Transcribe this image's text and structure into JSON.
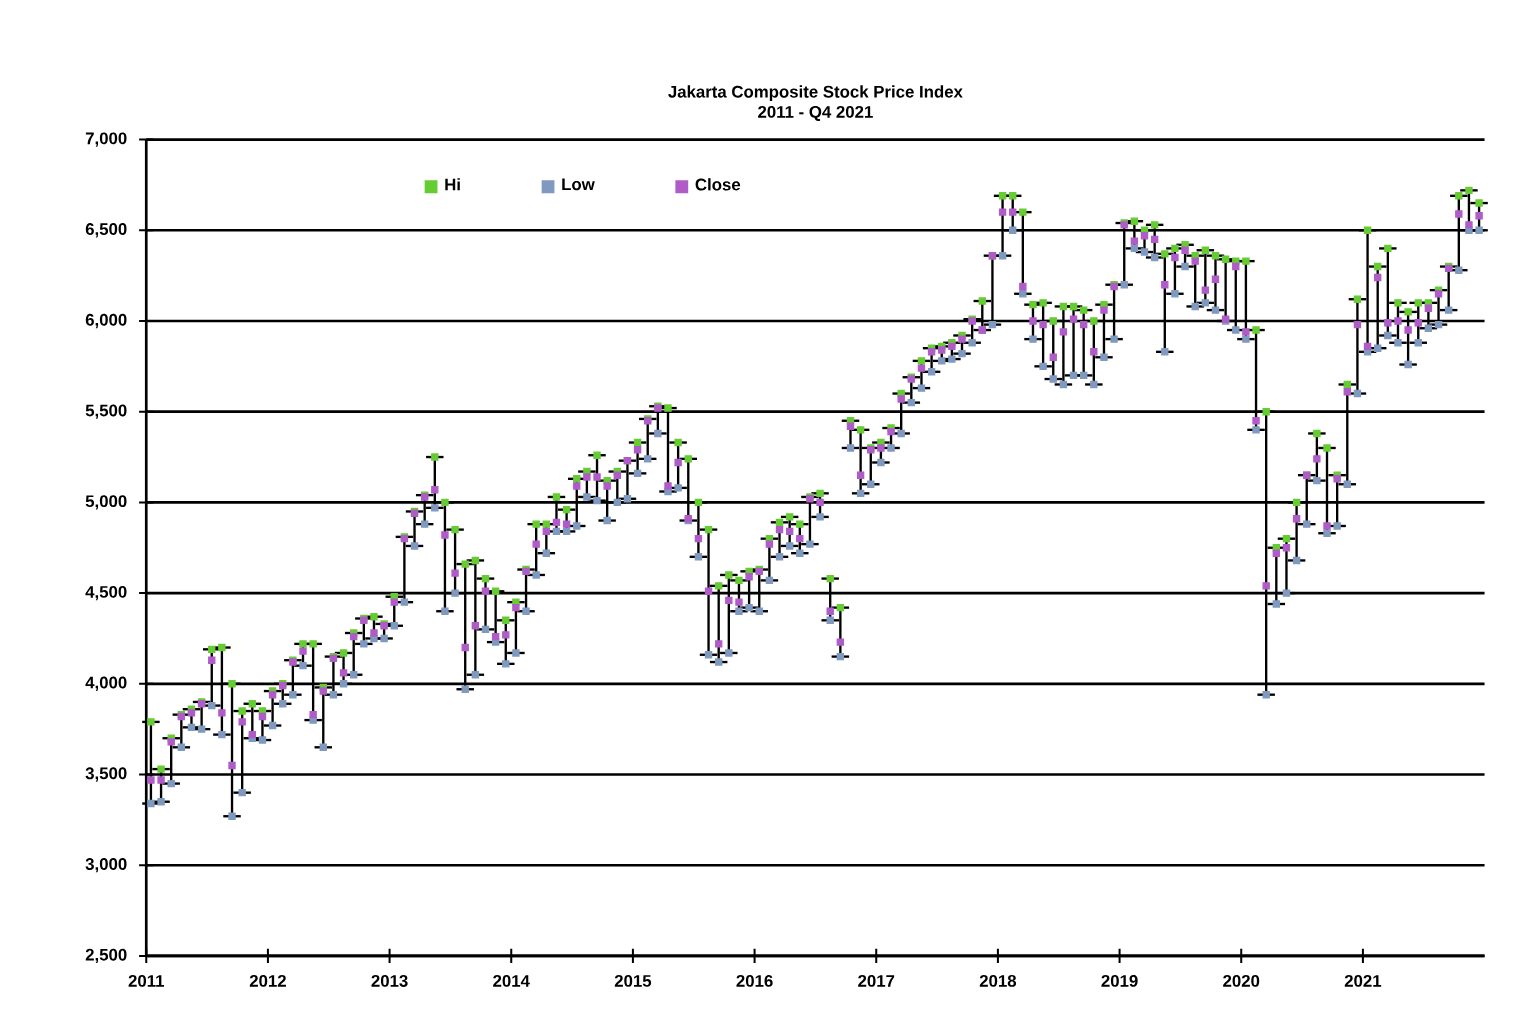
{
  "chart_data": {
    "type": "scatter",
    "title": "Jakarta Composite Stock Price Index",
    "subtitle": "2011 - Q4 2021",
    "x": [
      "2011-01-15",
      "2011-02-15",
      "2011-03-15",
      "2011-04-15",
      "2011-05-15",
      "2011-06-15",
      "2011-07-15",
      "2011-08-15",
      "2011-09-15",
      "2011-10-15",
      "2011-11-15",
      "2011-12-15",
      "2012-01-15",
      "2012-02-15",
      "2012-03-15",
      "2012-04-15",
      "2012-05-15",
      "2012-06-15",
      "2012-07-15",
      "2012-08-15",
      "2012-09-15",
      "2012-10-15",
      "2012-11-15",
      "2012-12-15",
      "2013-01-15",
      "2013-02-15",
      "2013-03-15",
      "2013-04-15",
      "2013-05-15",
      "2013-06-15",
      "2013-07-15",
      "2013-08-15",
      "2013-09-15",
      "2013-10-15",
      "2013-11-15",
      "2013-12-15",
      "2014-01-15",
      "2014-02-15",
      "2014-03-15",
      "2014-04-15",
      "2014-05-15",
      "2014-06-15",
      "2014-07-15",
      "2014-08-15",
      "2014-09-15",
      "2014-10-15",
      "2014-11-15",
      "2014-12-15",
      "2015-01-15",
      "2015-02-15",
      "2015-03-15",
      "2015-04-15",
      "2015-05-15",
      "2015-06-15",
      "2015-07-15",
      "2015-08-15",
      "2015-09-15",
      "2015-10-15",
      "2015-11-15",
      "2015-12-15",
      "2016-01-15",
      "2016-02-15",
      "2016-03-15",
      "2016-04-15",
      "2016-05-15",
      "2016-06-15",
      "2016-07-15",
      "2016-08-15",
      "2016-09-15",
      "2016-10-15",
      "2016-11-15",
      "2016-12-15",
      "2017-01-15",
      "2017-02-15",
      "2017-03-15",
      "2017-04-15",
      "2017-05-15",
      "2017-06-15",
      "2017-07-15",
      "2017-08-15",
      "2017-09-15",
      "2017-10-15",
      "2017-11-15",
      "2017-12-15",
      "2018-01-15",
      "2018-02-15",
      "2018-03-15",
      "2018-04-15",
      "2018-05-15",
      "2018-06-15",
      "2018-07-15",
      "2018-08-15",
      "2018-09-15",
      "2018-10-15",
      "2018-11-15",
      "2018-12-15",
      "2019-01-15",
      "2019-02-15",
      "2019-03-15",
      "2019-04-15",
      "2019-05-15",
      "2019-06-15",
      "2019-07-15",
      "2019-08-15",
      "2019-09-15",
      "2019-10-15",
      "2019-11-15",
      "2019-12-15",
      "2020-01-15",
      "2020-02-15",
      "2020-03-15",
      "2020-04-15",
      "2020-05-15",
      "2020-06-15",
      "2020-07-15",
      "2020-08-15",
      "2020-09-15",
      "2020-10-15",
      "2020-11-15",
      "2020-12-15",
      "2021-01-15",
      "2021-02-15",
      "2021-03-15",
      "2021-04-15",
      "2021-05-15",
      "2021-06-15",
      "2021-07-15",
      "2021-08-15",
      "2021-09-15",
      "2021-10-15",
      "2021-11-15",
      "2021-12-15"
    ],
    "series": [
      {
        "name": "Hi",
        "color": "#66cc33",
        "values": [
          3790,
          3530,
          3700,
          3830,
          3860,
          3900,
          4190,
          4200,
          4000,
          3850,
          3890,
          3850,
          3960,
          4000,
          4130,
          4220,
          4220,
          3980,
          4150,
          4170,
          4280,
          4360,
          4370,
          4330,
          4480,
          4810,
          4950,
          5040,
          5250,
          5000,
          4850,
          4660,
          4680,
          4580,
          4510,
          4350,
          4450,
          4630,
          4880,
          4880,
          5030,
          4960,
          5130,
          5170,
          5260,
          5120,
          5170,
          5230,
          5330,
          5460,
          5530,
          5520,
          5330,
          5240,
          5000,
          4850,
          4540,
          4600,
          4570,
          4620,
          4630,
          4800,
          4890,
          4920,
          4880,
          5030,
          5050,
          4580,
          4420,
          5450,
          5400,
          5300,
          5330,
          5410,
          5600,
          5690,
          5780,
          5850,
          5860,
          5880,
          5920,
          6010,
          6110,
          6360,
          6690,
          6690,
          6600,
          6090,
          6100,
          6000,
          6080,
          6080,
          6060,
          6000,
          6090,
          6200,
          6540,
          6550,
          6500,
          6530,
          6370,
          6400,
          6420,
          6360,
          6390,
          6360,
          6340,
          6330,
          6330,
          5950,
          5500,
          4750,
          4800,
          5000,
          5150,
          5380,
          5300,
          5150,
          5650,
          6120,
          6500,
          6300,
          6400,
          6100,
          6050,
          6100,
          6100,
          6170,
          6300,
          6690,
          6720,
          6650
        ]
      },
      {
        "name": "Low",
        "color": "#7f99bf",
        "values": [
          3340,
          3350,
          3450,
          3650,
          3760,
          3750,
          3880,
          3720,
          3270,
          3400,
          3700,
          3690,
          3770,
          3890,
          3940,
          4100,
          3800,
          3650,
          3940,
          4000,
          4050,
          4220,
          4250,
          4250,
          4320,
          4450,
          4760,
          4880,
          4970,
          4400,
          4500,
          3970,
          4050,
          4300,
          4230,
          4110,
          4170,
          4400,
          4600,
          4720,
          4840,
          4840,
          4870,
          5030,
          5010,
          4900,
          5000,
          5020,
          5160,
          5240,
          5380,
          5060,
          5080,
          4900,
          4700,
          4160,
          4120,
          4170,
          4400,
          4420,
          4400,
          4570,
          4700,
          4760,
          4720,
          4770,
          4920,
          4350,
          4150,
          5300,
          5050,
          5100,
          5220,
          5300,
          5380,
          5550,
          5630,
          5720,
          5780,
          5790,
          5820,
          5880,
          5950,
          5980,
          6360,
          6500,
          6150,
          5900,
          5750,
          5680,
          5650,
          5700,
          5700,
          5650,
          5800,
          5900,
          6200,
          6400,
          6380,
          6350,
          5830,
          6150,
          6300,
          6080,
          6100,
          6060,
          6000,
          5950,
          5900,
          5400,
          3940,
          4440,
          4500,
          4680,
          4880,
          5120,
          4830,
          4870,
          5100,
          5600,
          5830,
          5850,
          5920,
          5880,
          5760,
          5880,
          5960,
          5980,
          6060,
          6280,
          6500,
          6500
        ]
      },
      {
        "name": "Close",
        "color": "#b05cc8",
        "errors": [
          [
            3340,
            3790
          ],
          [
            3350,
            3530
          ],
          [
            3450,
            3700
          ],
          [
            3650,
            3830
          ],
          [
            3760,
            3860
          ],
          [
            3750,
            3900
          ],
          [
            3880,
            4190
          ],
          [
            3720,
            4200
          ],
          [
            3270,
            4000
          ],
          [
            3400,
            3850
          ],
          [
            3700,
            3890
          ],
          [
            3690,
            3850
          ],
          [
            3770,
            3960
          ],
          [
            3890,
            4000
          ],
          [
            3940,
            4130
          ],
          [
            4100,
            4220
          ],
          [
            3800,
            4220
          ],
          [
            3650,
            3980
          ],
          [
            3940,
            4150
          ],
          [
            4000,
            4170
          ],
          [
            4050,
            4280
          ],
          [
            4220,
            4360
          ],
          [
            4250,
            4370
          ],
          [
            4250,
            4330
          ],
          [
            4320,
            4480
          ],
          [
            4450,
            4810
          ],
          [
            4760,
            4950
          ],
          [
            4880,
            5040
          ],
          [
            4970,
            5250
          ],
          [
            4400,
            5000
          ],
          [
            4500,
            4850
          ],
          [
            3970,
            4660
          ],
          [
            4050,
            4680
          ],
          [
            4300,
            4580
          ],
          [
            4230,
            4510
          ],
          [
            4110,
            4350
          ],
          [
            4170,
            4450
          ],
          [
            4400,
            4630
          ],
          [
            4600,
            4880
          ],
          [
            4720,
            4880
          ],
          [
            4840,
            5030
          ],
          [
            4840,
            4960
          ],
          [
            4870,
            5130
          ],
          [
            5030,
            5170
          ],
          [
            5010,
            5260
          ],
          [
            4900,
            5120
          ],
          [
            5000,
            5170
          ],
          [
            5020,
            5230
          ],
          [
            5160,
            5330
          ],
          [
            5240,
            5460
          ],
          [
            5380,
            5530
          ],
          [
            5060,
            5520
          ],
          [
            5080,
            5330
          ],
          [
            4900,
            5240
          ],
          [
            4700,
            5000
          ],
          [
            4160,
            4850
          ],
          [
            4120,
            4540
          ],
          [
            4170,
            4600
          ],
          [
            4400,
            4570
          ],
          [
            4420,
            4620
          ],
          [
            4400,
            4630
          ],
          [
            4570,
            4800
          ],
          [
            4700,
            4890
          ],
          [
            4760,
            4920
          ],
          [
            4720,
            4880
          ],
          [
            4770,
            5030
          ],
          [
            4920,
            5050
          ],
          [
            4350,
            4580
          ],
          [
            4150,
            4420
          ],
          [
            5300,
            5450
          ],
          [
            5050,
            5400
          ],
          [
            5100,
            5300
          ],
          [
            5220,
            5330
          ],
          [
            5300,
            5410
          ],
          [
            5380,
            5600
          ],
          [
            5550,
            5690
          ],
          [
            5630,
            5780
          ],
          [
            5720,
            5850
          ],
          [
            5780,
            5860
          ],
          [
            5790,
            5880
          ],
          [
            5820,
            5920
          ],
          [
            5880,
            6010
          ],
          [
            5950,
            6110
          ],
          [
            5980,
            6360
          ],
          [
            6360,
            6690
          ],
          [
            6500,
            6690
          ],
          [
            6150,
            6600
          ],
          [
            5900,
            6090
          ],
          [
            5750,
            6100
          ],
          [
            5680,
            6000
          ],
          [
            5650,
            6080
          ],
          [
            5700,
            6080
          ],
          [
            5700,
            6060
          ],
          [
            5650,
            6000
          ],
          [
            5800,
            6090
          ],
          [
            5900,
            6200
          ],
          [
            6200,
            6540
          ],
          [
            6400,
            6550
          ],
          [
            6380,
            6500
          ],
          [
            6350,
            6530
          ],
          [
            5830,
            6370
          ],
          [
            6150,
            6400
          ],
          [
            6300,
            6420
          ],
          [
            6080,
            6360
          ],
          [
            6100,
            6390
          ],
          [
            6060,
            6360
          ],
          [
            6000,
            6340
          ],
          [
            5950,
            6330
          ],
          [
            5900,
            6330
          ],
          [
            5400,
            5950
          ],
          [
            3940,
            5500
          ],
          [
            4440,
            4750
          ],
          [
            4500,
            4800
          ],
          [
            4680,
            5000
          ],
          [
            4880,
            5150
          ],
          [
            5120,
            5380
          ],
          [
            4830,
            5300
          ],
          [
            4870,
            5150
          ],
          [
            5100,
            5650
          ],
          [
            5600,
            6120
          ],
          [
            5830,
            6500
          ],
          [
            5850,
            6300
          ],
          [
            5920,
            6400
          ],
          [
            5880,
            6100
          ],
          [
            5760,
            6050
          ],
          [
            5880,
            6100
          ],
          [
            5960,
            6100
          ],
          [
            5980,
            6170
          ],
          [
            6060,
            6300
          ],
          [
            6280,
            6690
          ],
          [
            6500,
            6720
          ],
          [
            6500,
            6650
          ]
        ],
        "values": [
          3470,
          3470,
          3680,
          3820,
          3840,
          3890,
          4130,
          3840,
          3550,
          3790,
          3720,
          3820,
          3940,
          3990,
          4120,
          4180,
          3830,
          3960,
          4140,
          4060,
          4260,
          4350,
          4280,
          4320,
          4450,
          4800,
          4940,
          5030,
          5070,
          4820,
          4610,
          4200,
          4320,
          4510,
          4260,
          4270,
          4420,
          4620,
          4770,
          4840,
          4890,
          4880,
          5090,
          5140,
          5140,
          5090,
          5150,
          5230,
          5290,
          5450,
          5520,
          5090,
          5220,
          4910,
          4800,
          4510,
          4220,
          4460,
          4450,
          4590,
          4620,
          4770,
          4850,
          4840,
          4800,
          5020,
          5000,
          4400,
          4230,
          5420,
          5150,
          5290,
          5300,
          5390,
          5570,
          5680,
          5740,
          5830,
          5840,
          5860,
          5900,
          6000,
          5950,
          6360,
          6600,
          6600,
          6190,
          6000,
          5980,
          5800,
          5940,
          6010,
          5980,
          5830,
          6060,
          6190,
          6530,
          6440,
          6470,
          6450,
          6200,
          6350,
          6390,
          6330,
          6170,
          6230,
          6010,
          6300,
          5940,
          5450,
          4540,
          4720,
          4750,
          4910,
          5150,
          5240,
          4870,
          5130,
          5610,
          5980,
          5860,
          6240,
          5990,
          6000,
          5950,
          5990,
          6070,
          6150,
          6290,
          6590,
          6530,
          6580
        ]
      }
    ],
    "xlim": [
      "2011",
      "2022"
    ],
    "xticks": [
      "2011",
      "2012",
      "2013",
      "2014",
      "2015",
      "2016",
      "2017",
      "2018",
      "2019",
      "2020",
      "2021"
    ],
    "ylim": [
      2500,
      7000
    ],
    "yticks": [
      {
        "value": 2500,
        "label": "2,500"
      },
      {
        "value": 3000,
        "label": "3,000"
      },
      {
        "value": 3500,
        "label": "3,500"
      },
      {
        "value": 4000,
        "label": "4,000"
      },
      {
        "value": 4500,
        "label": "4,500"
      },
      {
        "value": 5000,
        "label": "5,000"
      },
      {
        "value": 5500,
        "label": "5,500"
      },
      {
        "value": 6000,
        "label": "6,000"
      },
      {
        "value": 6500,
        "label": "6,500"
      },
      {
        "value": 7000,
        "label": "7,000"
      }
    ],
    "grid": "y",
    "legend": "top left",
    "marker": "square"
  }
}
